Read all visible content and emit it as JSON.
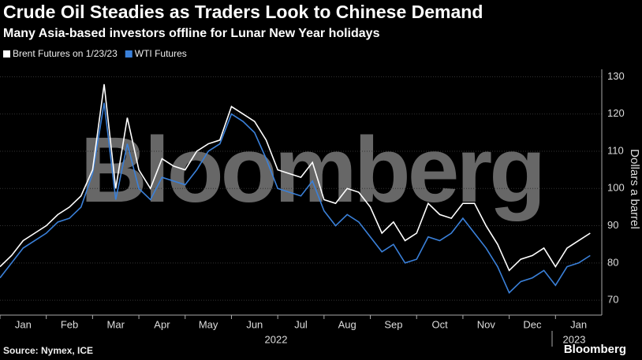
{
  "chart_data": {
    "type": "line",
    "title": "Crude Oil Steadies as Traders Look to Chinese Demand",
    "subtitle": "Many Asia-based investors offline for Lunar New Year holidays",
    "y_label": "Dollars a barrel",
    "watermark": "Bloomberg",
    "source": "Source: Nymex, ICE",
    "logo": "Bloomberg",
    "year_labels": [
      "2022",
      "2023"
    ],
    "x": [
      0,
      0.25,
      0.5,
      0.75,
      1,
      1.25,
      1.5,
      1.75,
      2,
      2.25,
      2.5,
      2.75,
      3,
      3.25,
      3.5,
      3.75,
      4,
      4.25,
      4.5,
      4.75,
      5,
      5.25,
      5.5,
      5.75,
      6,
      6.25,
      6.5,
      6.75,
      7,
      7.25,
      7.5,
      7.75,
      8,
      8.25,
      8.5,
      8.75,
      9,
      9.25,
      9.5,
      9.75,
      10,
      10.25,
      10.5,
      10.75,
      11,
      11.25,
      11.5,
      11.75,
      12,
      12.25,
      12.5,
      12.75
    ],
    "series": [
      {
        "name": "Brent Futures on 1/23/23",
        "color": "#ffffff",
        "values": [
          79,
          82,
          86,
          88,
          90,
          93,
          95,
          98,
          105,
          128,
          100,
          119,
          105,
          100,
          108,
          106,
          105,
          110,
          112,
          113,
          122,
          120,
          118,
          113,
          105,
          104,
          103,
          107,
          97,
          96,
          100,
          99,
          95,
          88,
          91,
          86,
          88,
          96,
          93,
          92,
          96,
          96,
          90,
          85,
          78,
          81,
          82,
          84,
          79,
          84,
          86,
          88
        ]
      },
      {
        "name": "WTI Futures",
        "color": "#3a80d9",
        "values": [
          76,
          80,
          84,
          86,
          88,
          91,
          92,
          95,
          104,
          123,
          97,
          112,
          100,
          97,
          103,
          102,
          101,
          105,
          110,
          112,
          120,
          118,
          115,
          108,
          100,
          99,
          98,
          102,
          94,
          90,
          93,
          91,
          87,
          83,
          85,
          80,
          81,
          87,
          86,
          88,
          92,
          88,
          84,
          79,
          72,
          75,
          76,
          78,
          74,
          79,
          80,
          82
        ]
      }
    ],
    "xlim": [
      0,
      13
    ],
    "xticks": [
      {
        "value": 0,
        "label": "Jan"
      },
      {
        "value": 1,
        "label": "Feb"
      },
      {
        "value": 2,
        "label": "Mar"
      },
      {
        "value": 3,
        "label": "Apr"
      },
      {
        "value": 4,
        "label": "May"
      },
      {
        "value": 5,
        "label": "Jun"
      },
      {
        "value": 6,
        "label": "Jul"
      },
      {
        "value": 7,
        "label": "Aug"
      },
      {
        "value": 8,
        "label": "Sep"
      },
      {
        "value": 9,
        "label": "Oct"
      },
      {
        "value": 10,
        "label": "Nov"
      },
      {
        "value": 11,
        "label": "Dec"
      },
      {
        "value": 12,
        "label": "Jan"
      }
    ],
    "ylim": [
      66,
      132
    ],
    "yticks": [
      70,
      80,
      90,
      100,
      110,
      120,
      130
    ],
    "grid": true,
    "legend": "top-left"
  }
}
